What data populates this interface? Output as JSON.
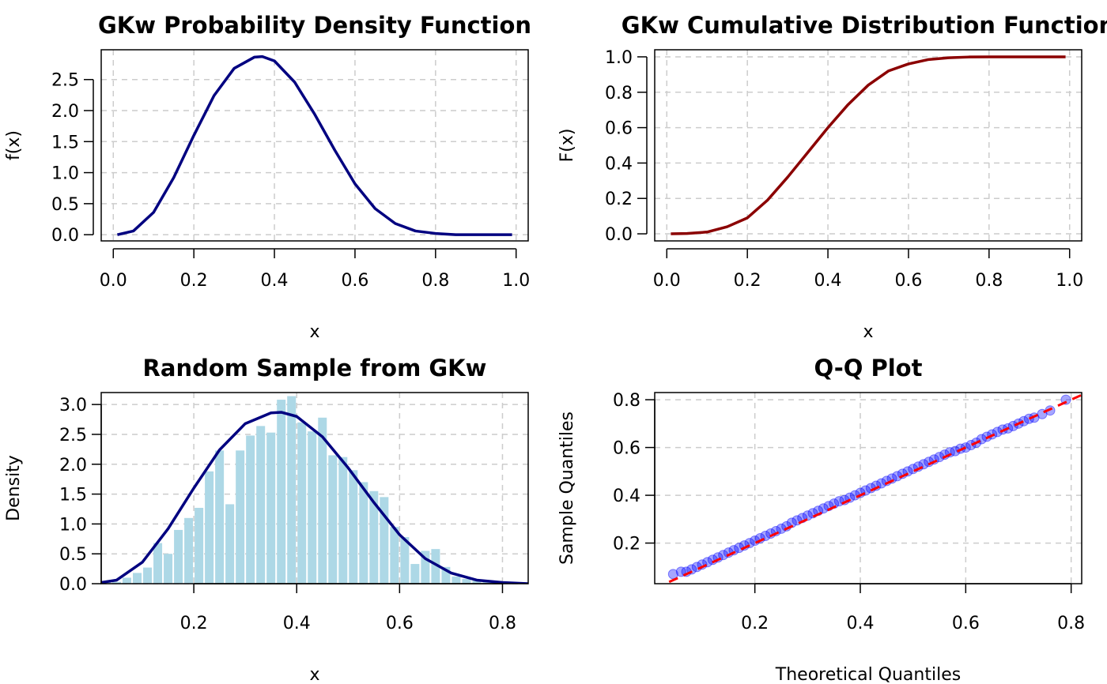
{
  "chart_data": [
    {
      "id": "pdf",
      "type": "line",
      "title": "GKw Probability Density Function",
      "xlabel": "x",
      "ylabel": "f(x)",
      "xlim": [
        -0.03,
        1.03
      ],
      "ylim": [
        -0.1,
        2.98
      ],
      "xticks": [
        0.0,
        0.2,
        0.4,
        0.6,
        0.8,
        1.0
      ],
      "xtick_labels": [
        "0.0",
        "0.2",
        "0.4",
        "0.6",
        "0.8",
        "1.0"
      ],
      "yticks": [
        0.0,
        0.5,
        1.0,
        1.5,
        2.0,
        2.5
      ],
      "ytick_labels": [
        "0.0",
        "0.5",
        "1.0",
        "1.5",
        "2.0",
        "2.5"
      ],
      "grid": true,
      "line_color": "#000080",
      "series": [
        {
          "x": [
            0.01,
            0.05,
            0.1,
            0.15,
            0.2,
            0.25,
            0.3,
            0.35,
            0.37,
            0.4,
            0.45,
            0.5,
            0.55,
            0.6,
            0.65,
            0.7,
            0.75,
            0.8,
            0.85,
            0.9,
            0.95,
            0.99
          ],
          "y": [
            0.0,
            0.06,
            0.36,
            0.92,
            1.6,
            2.24,
            2.68,
            2.86,
            2.87,
            2.8,
            2.46,
            1.94,
            1.36,
            0.82,
            0.42,
            0.18,
            0.06,
            0.02,
            0.0,
            0.0,
            0.0,
            0.0
          ]
        }
      ]
    },
    {
      "id": "cdf",
      "type": "line",
      "title": "GKw Cumulative Distribution Function",
      "xlabel": "x",
      "ylabel": "F(x)",
      "xlim": [
        -0.03,
        1.03
      ],
      "ylim": [
        -0.04,
        1.04
      ],
      "xticks": [
        0.0,
        0.2,
        0.4,
        0.6,
        0.8,
        1.0
      ],
      "xtick_labels": [
        "0.0",
        "0.2",
        "0.4",
        "0.6",
        "0.8",
        "1.0"
      ],
      "yticks": [
        0.0,
        0.2,
        0.4,
        0.6,
        0.8,
        1.0
      ],
      "ytick_labels": [
        "0.0",
        "0.2",
        "0.4",
        "0.6",
        "0.8",
        "1.0"
      ],
      "grid": true,
      "line_color": "#8B0000",
      "series": [
        {
          "x": [
            0.01,
            0.05,
            0.1,
            0.15,
            0.2,
            0.25,
            0.3,
            0.35,
            0.4,
            0.45,
            0.5,
            0.55,
            0.6,
            0.65,
            0.7,
            0.75,
            0.8,
            0.85,
            0.9,
            0.95,
            0.99
          ],
          "y": [
            0.0,
            0.002,
            0.01,
            0.04,
            0.09,
            0.19,
            0.32,
            0.46,
            0.6,
            0.73,
            0.84,
            0.92,
            0.96,
            0.985,
            0.995,
            0.999,
            1.0,
            1.0,
            1.0,
            1.0,
            1.0
          ]
        }
      ]
    },
    {
      "id": "hist",
      "type": "bar",
      "title": "Random Sample from GKw",
      "xlabel": "x",
      "ylabel": "Density",
      "xlim": [
        0.02,
        0.85
      ],
      "ylim": [
        0.0,
        3.2
      ],
      "xticks": [
        0.2,
        0.4,
        0.6,
        0.8
      ],
      "xtick_labels": [
        "0.2",
        "0.4",
        "0.6",
        "0.8"
      ],
      "yticks": [
        0.0,
        0.5,
        1.0,
        1.5,
        2.0,
        2.5,
        3.0
      ],
      "ytick_labels": [
        "0.0",
        "0.5",
        "1.0",
        "1.5",
        "2.0",
        "2.5",
        "3.0"
      ],
      "grid": true,
      "bar_color": "#ADD8E6",
      "line_color": "#000080",
      "bin_width": 0.02,
      "bin_starts": [
        0.02,
        0.04,
        0.06,
        0.08,
        0.1,
        0.12,
        0.14,
        0.16,
        0.18,
        0.2,
        0.22,
        0.24,
        0.26,
        0.28,
        0.3,
        0.32,
        0.34,
        0.36,
        0.38,
        0.4,
        0.42,
        0.44,
        0.46,
        0.48,
        0.5,
        0.52,
        0.54,
        0.56,
        0.58,
        0.6,
        0.62,
        0.64,
        0.66,
        0.68,
        0.7,
        0.72,
        0.74,
        0.76,
        0.78,
        0.8
      ],
      "densities": [
        0.02,
        0.03,
        0.1,
        0.18,
        0.27,
        0.68,
        0.5,
        0.9,
        1.1,
        1.27,
        1.88,
        2.23,
        1.33,
        2.23,
        2.48,
        2.64,
        2.53,
        3.08,
        3.14,
        2.7,
        2.55,
        2.78,
        2.15,
        2.12,
        1.9,
        1.7,
        1.55,
        1.45,
        0.95,
        0.78,
        0.33,
        0.55,
        0.58,
        0.28,
        0.12,
        0.08,
        0.05,
        0.03,
        0.02,
        0.01
      ],
      "density_curve": {
        "x": [
          0.02,
          0.05,
          0.1,
          0.15,
          0.2,
          0.25,
          0.3,
          0.35,
          0.37,
          0.4,
          0.45,
          0.5,
          0.55,
          0.6,
          0.65,
          0.7,
          0.75,
          0.8,
          0.85
        ],
        "y": [
          0.02,
          0.06,
          0.36,
          0.92,
          1.6,
          2.24,
          2.68,
          2.86,
          2.87,
          2.8,
          2.46,
          1.94,
          1.36,
          0.82,
          0.42,
          0.18,
          0.06,
          0.02,
          0.0
        ]
      }
    },
    {
      "id": "qq",
      "type": "scatter",
      "title": "Q-Q Plot",
      "xlabel": "Theoretical Quantiles",
      "ylabel": "Sample Quantiles",
      "xlim": [
        0.01,
        0.82
      ],
      "ylim": [
        0.03,
        0.83
      ],
      "xticks": [
        0.2,
        0.4,
        0.6,
        0.8
      ],
      "xtick_labels": [
        "0.2",
        "0.4",
        "0.6",
        "0.8"
      ],
      "yticks": [
        0.2,
        0.4,
        0.6,
        0.8
      ],
      "ytick_labels": [
        "0.2",
        "0.4",
        "0.6",
        "0.8"
      ],
      "grid": true,
      "point_color": "#0000FF",
      "reference_line_color": "#FF0000",
      "reference_line": [
        [
          0.01,
          0.01
        ],
        [
          0.82,
          0.82
        ]
      ],
      "points": {
        "x": [
          0.045,
          0.06,
          0.07,
          0.08,
          0.09,
          0.1,
          0.11,
          0.12,
          0.13,
          0.14,
          0.15,
          0.16,
          0.17,
          0.18,
          0.19,
          0.2,
          0.21,
          0.22,
          0.23,
          0.24,
          0.25,
          0.26,
          0.27,
          0.28,
          0.29,
          0.3,
          0.31,
          0.32,
          0.33,
          0.34,
          0.35,
          0.36,
          0.37,
          0.38,
          0.39,
          0.4,
          0.41,
          0.42,
          0.43,
          0.44,
          0.45,
          0.46,
          0.47,
          0.48,
          0.49,
          0.5,
          0.51,
          0.52,
          0.53,
          0.54,
          0.55,
          0.56,
          0.57,
          0.58,
          0.59,
          0.6,
          0.61,
          0.62,
          0.63,
          0.64,
          0.65,
          0.66,
          0.67,
          0.68,
          0.69,
          0.7,
          0.71,
          0.72,
          0.73,
          0.745,
          0.76,
          0.79
        ],
        "y": [
          0.07,
          0.08,
          0.08,
          0.09,
          0.1,
          0.11,
          0.12,
          0.13,
          0.14,
          0.15,
          0.16,
          0.17,
          0.18,
          0.19,
          0.2,
          0.21,
          0.22,
          0.23,
          0.24,
          0.25,
          0.26,
          0.27,
          0.285,
          0.295,
          0.305,
          0.315,
          0.325,
          0.335,
          0.345,
          0.355,
          0.365,
          0.375,
          0.38,
          0.39,
          0.4,
          0.41,
          0.42,
          0.43,
          0.44,
          0.45,
          0.46,
          0.47,
          0.48,
          0.49,
          0.5,
          0.51,
          0.52,
          0.53,
          0.54,
          0.55,
          0.56,
          0.57,
          0.58,
          0.585,
          0.595,
          0.6,
          0.61,
          0.62,
          0.635,
          0.645,
          0.655,
          0.665,
          0.675,
          0.68,
          0.69,
          0.7,
          0.71,
          0.72,
          0.725,
          0.74,
          0.755,
          0.8
        ]
      }
    }
  ]
}
